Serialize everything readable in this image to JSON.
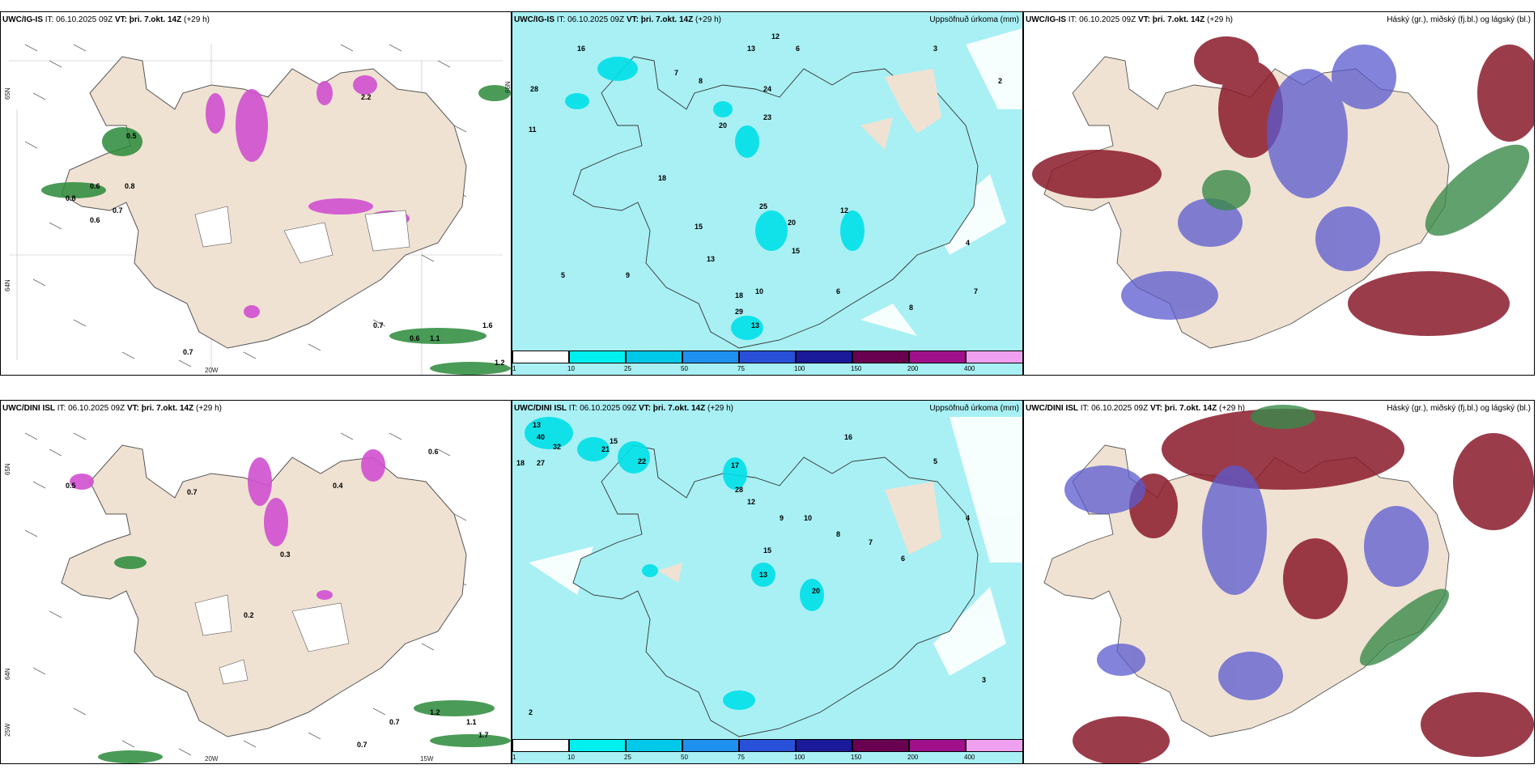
{
  "rows": [
    {
      "model": "UWC/IG-IS",
      "it_label": "IT:",
      "it": "06.10.2025 09Z",
      "vt_label": "VT:",
      "vt": "þri. 7.okt. 14Z",
      "lead": "(+29 h)"
    },
    {
      "model": "UWC/DINI ISL",
      "it_label": "IT:",
      "it": "06.10.2025 09Z",
      "vt_label": "VT:",
      "vt": "þri. 7.okt. 14Z",
      "lead": "(+29 h)"
    }
  ],
  "precip_title": "Uppsöfnuð úrkoma (mm)",
  "cloud_title": "Háský (gr.), miðský (fj.bl.) og lágský (bl.)",
  "axis": {
    "lat65": "65N",
    "lat66": "66N",
    "lat64": "64N",
    "lon20": "20W",
    "lon15": "15W",
    "lon25": "25W"
  },
  "wind_values_top": [
    "0.5",
    "0.6",
    "0.8",
    "0.7",
    "0.6",
    "0.7",
    "1.1",
    "0.6",
    "0.7",
    "1.6",
    "2.2",
    "0.8",
    "1.2"
  ],
  "wind_values_bottom": [
    "0.5",
    "0.7",
    "0.6",
    "0.4",
    "0.3",
    "0.7",
    "1.1",
    "0.7",
    "1.2",
    "1.7",
    "0.2"
  ],
  "precip_numbers_top": [
    "16",
    "13",
    "12",
    "7",
    "6",
    "8",
    "28",
    "11",
    "24",
    "20",
    "23",
    "18",
    "15",
    "25",
    "20",
    "12",
    "15",
    "13",
    "18",
    "29",
    "13",
    "10",
    "9",
    "5",
    "4",
    "3",
    "2",
    "8",
    "7",
    "6"
  ],
  "precip_numbers_bottom": [
    "13",
    "40",
    "32",
    "27",
    "21",
    "17",
    "15",
    "16",
    "22",
    "18",
    "28",
    "12",
    "20",
    "13",
    "15",
    "9",
    "10",
    "8",
    "7",
    "6",
    "5",
    "4",
    "3",
    "2"
  ],
  "colorbar": {
    "ticks": [
      "1",
      "10",
      "25",
      "50",
      "75",
      "100",
      "150",
      "200",
      "400"
    ],
    "colors": [
      "#ffffff",
      "#00f0f0",
      "#00c8e8",
      "#1e90f0",
      "#2850d8",
      "#1a1a9a",
      "#6a0050",
      "#a0108a",
      "#e010b0",
      "#f0a0f0"
    ]
  },
  "colors": {
    "land": "#f0e2d2",
    "sea_precip": "#a8f0f4",
    "snow_magenta": "#d050d0",
    "rain_green": "#2a8a3a",
    "high_cloud": "#3a8a4a",
    "mid_cloud": "#5a5ad0",
    "low_cloud": "#8a1a2a"
  }
}
